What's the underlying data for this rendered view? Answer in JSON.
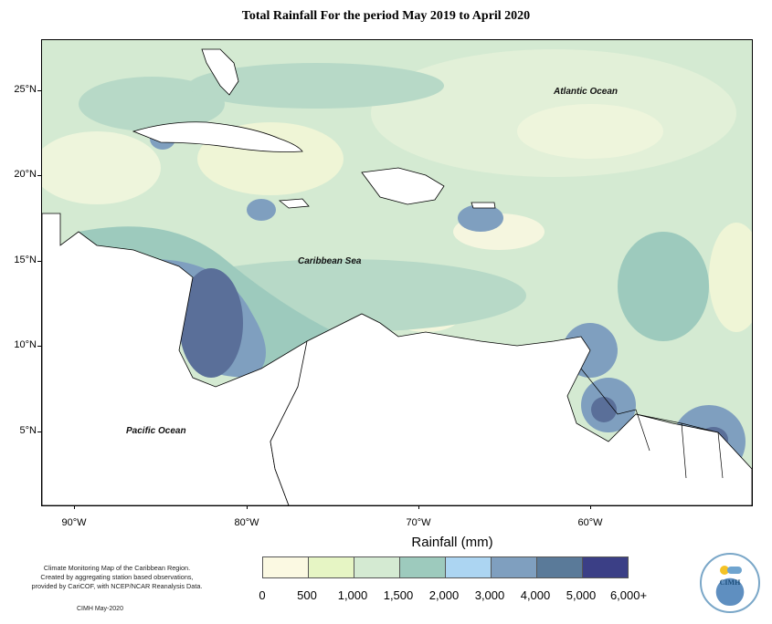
{
  "title": "Total Rainfall For the period May 2019 to April 2020",
  "map_labels": {
    "atlantic": "Atlantic Ocean",
    "caribbean": "Caribbean Sea",
    "pacific": "Pacific Ocean"
  },
  "lat_ticks": [
    "25°N",
    "20°N",
    "15°N",
    "10°N",
    "5°N"
  ],
  "lon_ticks": [
    "90°W",
    "80°W",
    "70°W",
    "60°W"
  ],
  "legend": {
    "title": "Rainfall (mm)",
    "breaks": [
      "0",
      "500",
      "1,000",
      "1,500",
      "2,000",
      "3,000",
      "4,000",
      "5,000",
      "6,000+"
    ],
    "colors": [
      "#fbf9e2",
      "#e6f5c4",
      "#d4ead2",
      "#9dcabd",
      "#acd5f2",
      "#7f9fbf",
      "#5a7a99",
      "#3b3f86"
    ]
  },
  "credit": {
    "line1": "Climate Monitoring Map of the Caribbean Region.",
    "line2": "Created by aggregating station based observations,",
    "line3": "provided by CariCOF, with NCEP/NCAR Reanalysis Data.",
    "date": "CIMH May-2020"
  },
  "logo": {
    "text": "CIMH"
  }
}
